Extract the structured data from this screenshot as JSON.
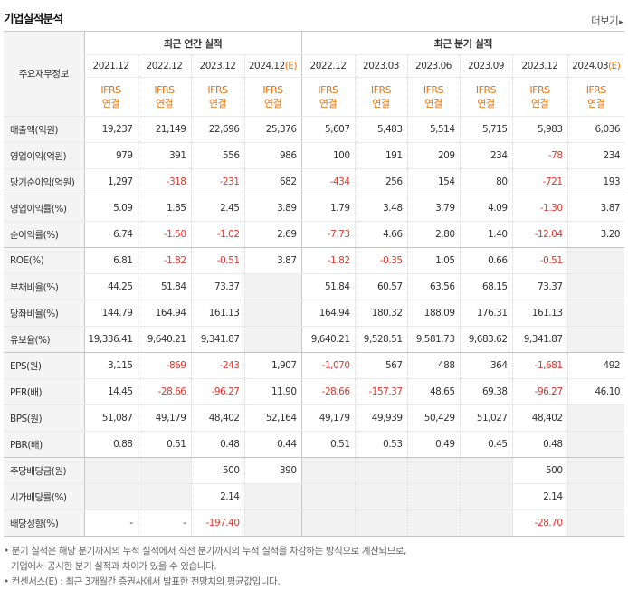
{
  "header": {
    "title": "기업실적분석",
    "more_label": "더보기",
    "more_arrow": "▸"
  },
  "table": {
    "row_header_label": "주요재무정보",
    "groups": [
      {
        "label": "최근 연간 실적"
      },
      {
        "label": "최근 분기 실적"
      }
    ],
    "periods": [
      {
        "label": "2021.12"
      },
      {
        "label": "2022.12"
      },
      {
        "label": "2023.12"
      },
      {
        "label": "2024.12(E)"
      },
      {
        "label": "2022.12"
      },
      {
        "label": "2023.03"
      },
      {
        "label": "2023.06"
      },
      {
        "label": "2023.09"
      },
      {
        "label": "2023.12"
      },
      {
        "label": "2024.03(E)"
      }
    ],
    "standards": [
      {
        "line1": "IFRS",
        "line2": "연결"
      },
      {
        "line1": "IFRS",
        "line2": "연결"
      },
      {
        "line1": "IFRS",
        "line2": "연결"
      },
      {
        "line1": "IFRS",
        "line2": "연결"
      },
      {
        "line1": "IFRS",
        "line2": "연결"
      },
      {
        "line1": "IFRS",
        "line2": "연결"
      },
      {
        "line1": "IFRS",
        "line2": "연결"
      },
      {
        "line1": "IFRS",
        "line2": "연결"
      },
      {
        "line1": "IFRS",
        "line2": "연결"
      },
      {
        "line1": "IFRS",
        "line2": "연결"
      }
    ],
    "rows": [
      {
        "label": "매출액(억원)",
        "values": [
          "19,237",
          "21,149",
          "22,696",
          "25,376",
          "5,607",
          "5,483",
          "5,514",
          "5,715",
          "5,983",
          "6,036"
        ]
      },
      {
        "label": "영업이익(억원)",
        "values": [
          "979",
          "391",
          "556",
          "986",
          "100",
          "191",
          "209",
          "234",
          "-78",
          "234"
        ]
      },
      {
        "label": "당기순이익(억원)",
        "values": [
          "1,297",
          "-318",
          "-231",
          "682",
          "-434",
          "256",
          "154",
          "80",
          "-721",
          "193"
        ]
      },
      {
        "label": "영업이익률(%)",
        "values": [
          "5.09",
          "1.85",
          "2.45",
          "3.89",
          "1.79",
          "3.48",
          "3.79",
          "4.09",
          "-1.30",
          "3.87"
        ]
      },
      {
        "label": "순이익률(%)",
        "values": [
          "6.74",
          "-1.50",
          "-1.02",
          "2.69",
          "-7.73",
          "4.66",
          "2.80",
          "1.40",
          "-12.04",
          "3.20"
        ]
      },
      {
        "label": "ROE(%)",
        "values": [
          "6.81",
          "-1.82",
          "-0.51",
          "3.87",
          "-1.82",
          "-0.35",
          "1.05",
          "0.66",
          "-0.51",
          ""
        ]
      },
      {
        "label": "부채비율(%)",
        "values": [
          "44.25",
          "51.84",
          "73.37",
          "",
          "51.84",
          "60.57",
          "63.56",
          "68.15",
          "73.37",
          ""
        ]
      },
      {
        "label": "당좌비율(%)",
        "values": [
          "144.79",
          "164.94",
          "161.13",
          "",
          "164.94",
          "180.32",
          "188.09",
          "176.31",
          "161.13",
          ""
        ]
      },
      {
        "label": "유보율(%)",
        "values": [
          "19,336.41",
          "9,640.21",
          "9,341.87",
          "",
          "9,640.21",
          "9,528.51",
          "9,581.73",
          "9,683.62",
          "9,341.87",
          ""
        ]
      },
      {
        "label": "EPS(원)",
        "values": [
          "3,115",
          "-869",
          "-243",
          "1,907",
          "-1,070",
          "567",
          "488",
          "364",
          "-1,681",
          "492"
        ]
      },
      {
        "label": "PER(배)",
        "values": [
          "14.45",
          "-28.66",
          "-96.27",
          "11.90",
          "-28.66",
          "-157.37",
          "48.65",
          "69.38",
          "-96.27",
          "46.10"
        ]
      },
      {
        "label": "BPS(원)",
        "values": [
          "51,087",
          "49,179",
          "48,402",
          "52,164",
          "49,179",
          "49,939",
          "50,429",
          "51,027",
          "48,402",
          ""
        ]
      },
      {
        "label": "PBR(배)",
        "values": [
          "0.88",
          "0.51",
          "0.48",
          "0.44",
          "0.51",
          "0.53",
          "0.49",
          "0.45",
          "0.48",
          ""
        ]
      },
      {
        "label": "주당배당금(원)",
        "values": [
          "",
          "",
          "500",
          "390",
          "",
          "",
          "",
          "",
          "500",
          ""
        ]
      },
      {
        "label": "시가배당률(%)",
        "values": [
          "",
          "",
          "2.14",
          "",
          "",
          "",
          "",
          "",
          "2.14",
          ""
        ]
      },
      {
        "label": "배당성향(%)",
        "values": [
          "-",
          "-",
          "-197.40",
          "",
          "",
          "",
          "",
          "",
          "-28.70",
          ""
        ]
      }
    ]
  },
  "footnotes": {
    "line1": "• 분기 실적은 해당 분기까지의 누적 실적에서 직전 분기까지의 누적 실적을 차감하는 방식으로 계산되므로,",
    "line2": "기업에서 공시한 분기 실적과 차이가 있을 수 있습니다.",
    "line3": "• 컨센서스(E) : 최근 3개월간 증권사에서 발표한 전망치의 평균값입니다."
  },
  "colors": {
    "negative": "#e0372f",
    "accent": "#e8710a",
    "header_bg": "#f4f4f4"
  }
}
